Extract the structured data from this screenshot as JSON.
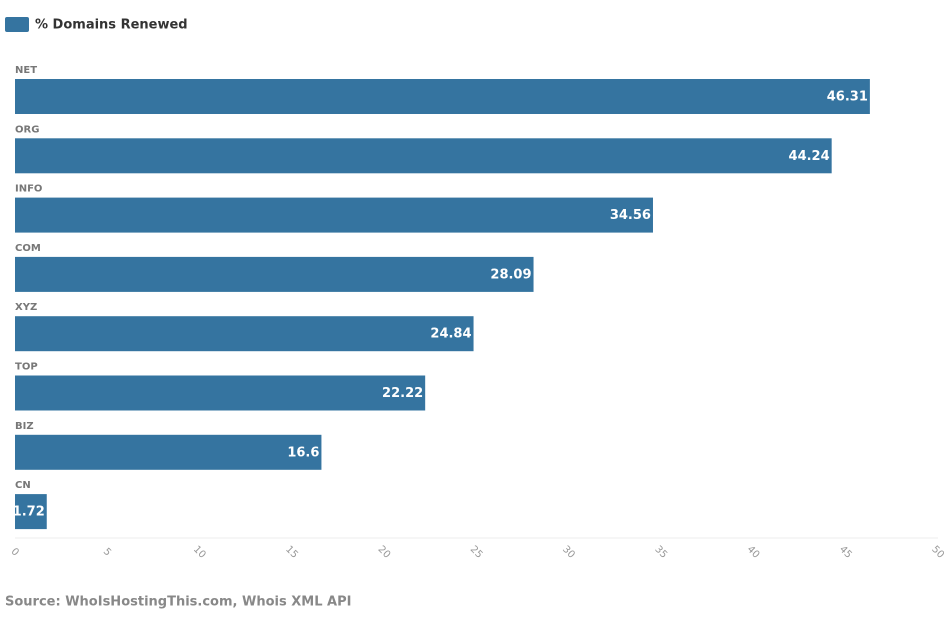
{
  "chart_data": {
    "type": "bar",
    "orientation": "horizontal",
    "categories": [
      "NET",
      "ORG",
      "INFO",
      "COM",
      "XYZ",
      "TOP",
      "BIZ",
      "CN"
    ],
    "series": [
      {
        "name": "% Domains Renewed",
        "color": "#3574a0",
        "values": [
          46.31,
          44.24,
          34.56,
          28.09,
          24.84,
          22.22,
          16.6,
          1.72
        ]
      }
    ],
    "xlim": [
      0,
      50
    ],
    "xticks": [
      0,
      5,
      10,
      15,
      20,
      25,
      30,
      35,
      40,
      45,
      50
    ],
    "source": "Source: WhoIsHostingThis.com, Whois XML API"
  }
}
